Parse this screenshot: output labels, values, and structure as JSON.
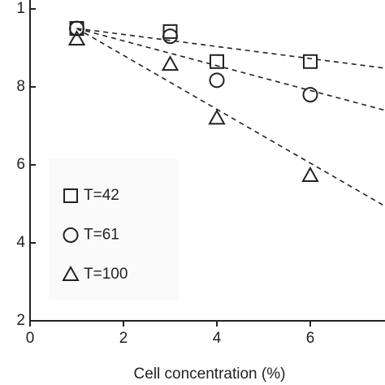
{
  "chart_data": {
    "type": "scatter",
    "xlabel": "Cell concentration (%)",
    "xlim": [
      0,
      7.6
    ],
    "xticks": [
      0,
      2,
      4,
      6
    ],
    "ylim": [
      0.2,
      1.02
    ],
    "yticks": [
      1,
      {
        "value": 0.8,
        "label": "8"
      },
      {
        "value": 0.6,
        "label": "6"
      },
      {
        "value": 0.4,
        "label": "4"
      },
      {
        "value": 0.2,
        "label": "2"
      }
    ],
    "legend": "lower left",
    "series": [
      {
        "name": "T=42",
        "marker": "square",
        "color": "#222222",
        "x": [
          1,
          3,
          4,
          6
        ],
        "values": [
          0.95,
          0.942,
          0.865,
          0.865
        ],
        "trend": {
          "x": [
            1,
            7.6
          ],
          "y": [
            0.95,
            0.848
          ]
        }
      },
      {
        "name": "T=61",
        "marker": "circle",
        "color": "#222222",
        "x": [
          1,
          3,
          4,
          6
        ],
        "values": [
          0.95,
          0.93,
          0.817,
          0.78
        ],
        "trend": {
          "x": [
            1,
            7.6
          ],
          "y": [
            0.95,
            0.74
          ]
        }
      },
      {
        "name": "T=100",
        "marker": "triangle",
        "color": "#222222",
        "x": [
          1,
          3,
          4,
          6
        ],
        "values": [
          0.923,
          0.858,
          0.72,
          0.573
        ],
        "trend": {
          "x": [
            1,
            7.6
          ],
          "y": [
            0.95,
            0.494
          ]
        }
      }
    ]
  }
}
